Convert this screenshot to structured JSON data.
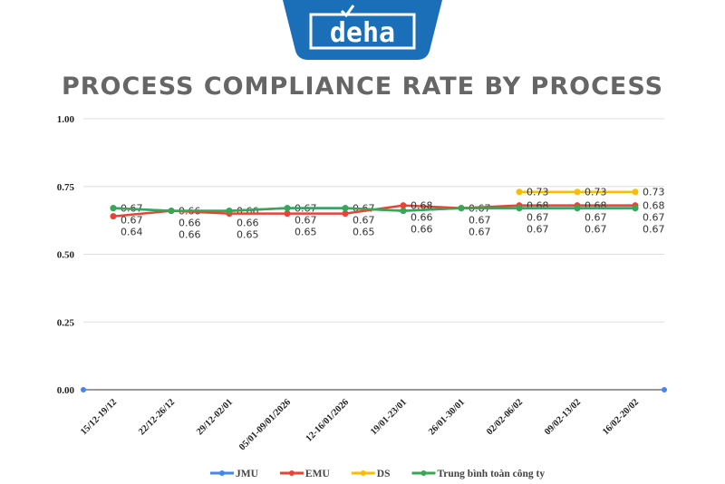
{
  "logo": {
    "text": "deha",
    "color": "#1a6fb8"
  },
  "chart_data": {
    "type": "line",
    "title": "PROCESS COMPLIANCE RATE BY PROCESS",
    "xlabel": "",
    "ylabel": "",
    "ylim": [
      0,
      1
    ],
    "yticks": [
      "0.00",
      "0.25",
      "0.50",
      "0.75",
      "1.00"
    ],
    "grid": true,
    "legend": "bottom",
    "categories": [
      "15/12-19/12",
      "22/12-26/12",
      "29/12-02/01",
      "05/01-09/01/2026",
      "12-16/01/2026",
      "19/01-23/01",
      "26/01-30/01",
      "02/02-06/02",
      "09/02-13/02",
      "16/02-20/02"
    ],
    "series": [
      {
        "name": "JMU",
        "color": "#4285f4",
        "values": [
          0.67,
          0.66,
          0.66,
          0.67,
          0.67,
          0.66,
          0.67,
          0.67,
          0.67,
          0.67
        ]
      },
      {
        "name": "EMU",
        "color": "#ea4335",
        "values": [
          0.64,
          0.66,
          0.65,
          0.65,
          0.65,
          0.68,
          0.67,
          0.68,
          0.68,
          0.68
        ]
      },
      {
        "name": "DS",
        "color": "#fbbc04",
        "values": [
          null,
          null,
          null,
          null,
          null,
          null,
          null,
          0.73,
          0.73,
          0.73
        ]
      },
      {
        "name": "Trung bình toàn công ty",
        "color": "#34a853",
        "values": [
          0.67,
          0.66,
          0.66,
          0.67,
          0.67,
          0.66,
          0.67,
          0.67,
          0.67,
          0.67
        ]
      }
    ]
  }
}
